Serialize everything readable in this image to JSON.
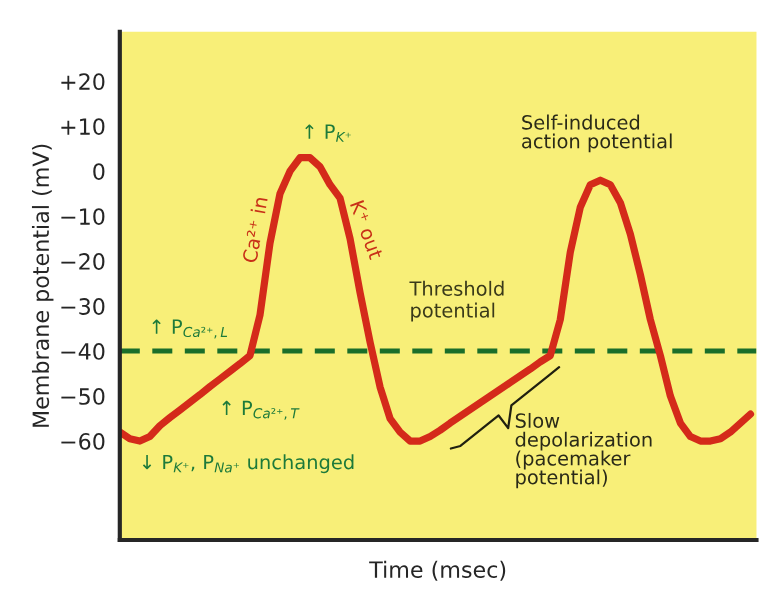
{
  "chart_data": {
    "type": "line",
    "xlabel": "Time (msec)",
    "ylabel": "Membrane potential (mV)",
    "categories": [
      null,
      null,
      null,
      null,
      null,
      null,
      null,
      null,
      null,
      null,
      null,
      null,
      null,
      null,
      null,
      null,
      null,
      null,
      null,
      null,
      null,
      null,
      null,
      null,
      null,
      null,
      null,
      null,
      null,
      null,
      null,
      null,
      null,
      null,
      null,
      null,
      null,
      null,
      null,
      null,
      null,
      null,
      null,
      null,
      null,
      null,
      null,
      null,
      null,
      null,
      null,
      null,
      null,
      null,
      null,
      null,
      null,
      null,
      null,
      null,
      null,
      null,
      null,
      null
    ],
    "series": [
      {
        "color": "#d42a1a",
        "values": [
          -58,
          -59.5,
          -60,
          -59,
          -56.6,
          -54.8,
          -53.1,
          -51.4,
          -49.7,
          -47.9,
          -46.2,
          -44.5,
          -42.8,
          -41,
          -32,
          -16,
          -5,
          0,
          3,
          3,
          1,
          -3,
          -6,
          -15,
          -27,
          -38,
          -48,
          -55,
          -58,
          -60,
          -60,
          -59,
          -57.6,
          -56,
          -54.5,
          -53,
          -51.5,
          -50,
          -48.5,
          -47,
          -45.5,
          -44,
          -42.4,
          -41,
          -33,
          -18,
          -8,
          -3,
          -2,
          -3,
          -7,
          -14,
          -23,
          -33,
          -41,
          -50,
          -56,
          -59,
          -60,
          -60,
          -59.5,
          -58,
          -56,
          -54
        ]
      }
    ],
    "ylim": [
      -82,
      31
    ],
    "yticks": [
      {
        "value": 20,
        "label": "+20"
      },
      {
        "value": 10,
        "label": "+10"
      },
      0,
      {
        "value": -10,
        "label": "−10"
      },
      {
        "value": -20,
        "label": "−20"
      },
      {
        "value": -30,
        "label": "−30"
      },
      {
        "value": -40,
        "label": "−40"
      },
      {
        "value": -50,
        "label": "−50"
      },
      {
        "value": -60,
        "label": "−60"
      }
    ],
    "ref_lines": [
      {
        "axis": "y",
        "value": -40,
        "label": "Threshold\npotential",
        "color": "#1a6e2a",
        "line_style": "dashed"
      }
    ],
    "annotations": [
      "↑ P$_{K⁺}$",
      "Ca²⁺ in",
      "K⁺ out",
      "↑ P$_{Ca²⁺,L}$",
      "↑ P$_{Ca²⁺,T}$",
      "↓ P$_{K⁺}$, P$_{Na⁺}$ unchanged",
      "Self-induced\naction potential",
      "Slow\ndepolarization\n(pacemaker\npotential)"
    ],
    "grid": false,
    "line_style": "solid"
  }
}
